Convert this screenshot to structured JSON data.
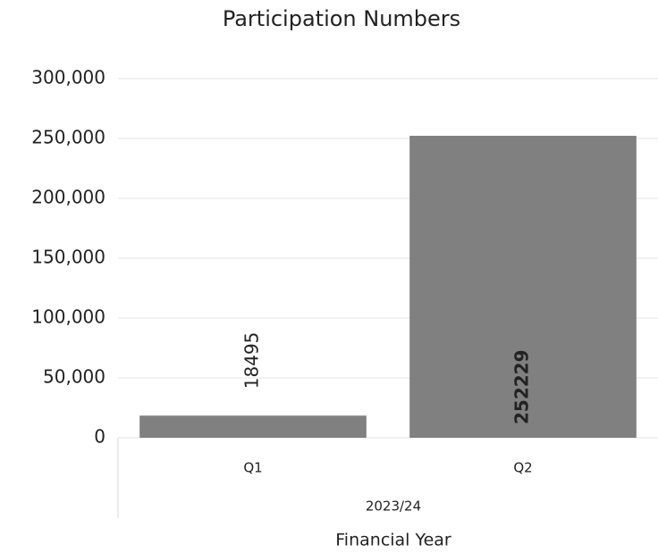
{
  "chart_data": {
    "type": "bar",
    "title": "Participation Numbers",
    "categories": [
      "Q1",
      "Q2"
    ],
    "group_label": "2023/24",
    "xlabel": "Financial Year",
    "values": [
      18495,
      252229
    ],
    "color": "#808080",
    "ylim": [
      0,
      300000
    ],
    "yticks": [
      0,
      {
        "value": 50000,
        "label": "50,000"
      },
      {
        "value": 100000,
        "label": "100,000"
      },
      {
        "value": 150000,
        "label": "150,000"
      },
      {
        "value": 200000,
        "label": "200,000"
      },
      {
        "value": 250000,
        "label": "250,000"
      },
      {
        "value": 300000,
        "label": "300,000"
      }
    ],
    "grid": true
  }
}
